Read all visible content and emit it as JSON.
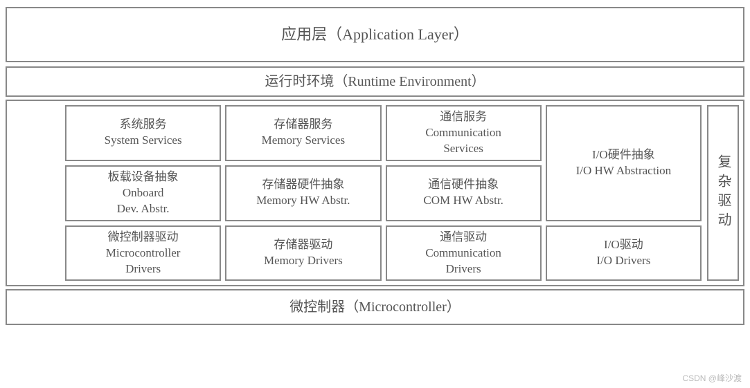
{
  "layers": {
    "application": {
      "cn": "应用层",
      "en": "（Application Layer）"
    },
    "runtime": {
      "cn": "运行时环境",
      "en": "（Runtime Environment）"
    },
    "microcontroller": {
      "cn": "微控制器",
      "en": "（Microcontroller）"
    }
  },
  "grid": {
    "system_services": {
      "cn": "系统服务",
      "en": "System Services"
    },
    "memory_services": {
      "cn": "存储器服务",
      "en": "Memory Services"
    },
    "comm_services": {
      "cn": "通信服务",
      "en_l1": "Communication",
      "en_l2": "Services"
    },
    "io_hw_abstr": {
      "cn": "I/O硬件抽象",
      "en": "I/O HW Abstraction"
    },
    "onboard_abstr": {
      "cn": "板载设备抽象",
      "en_l1": "Onboard",
      "en_l2": "Dev. Abstr."
    },
    "memory_hw_abstr": {
      "cn": "存储器硬件抽象",
      "en": "Memory HW Abstr."
    },
    "com_hw_abstr": {
      "cn": "通信硬件抽象",
      "en": "COM HW Abstr."
    },
    "micro_drivers": {
      "cn": "微控制器驱动",
      "en_l1": "Microcontroller",
      "en_l2": "Drivers"
    },
    "memory_drivers": {
      "cn": "存储器驱动",
      "en": "Memory Drivers"
    },
    "comm_drivers": {
      "cn": "通信驱动",
      "en_l1": "Communication",
      "en_l2": "Drivers"
    },
    "io_drivers": {
      "cn": "I/O驱动",
      "en": "I/O Drivers"
    }
  },
  "complex_driver": "复杂驱动",
  "watermark": "CSDN @峰沙渡",
  "style": {
    "border_color": "#888888",
    "text_color": "#555555",
    "background": "#ffffff",
    "title_fontsize": 22,
    "subtitle_fontsize": 20,
    "cell_fontsize": 17,
    "border_width": 2,
    "gap": 6
  }
}
